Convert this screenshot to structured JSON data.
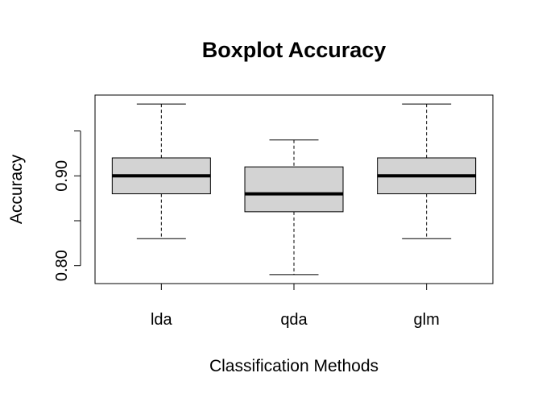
{
  "chart_data": {
    "type": "box",
    "title": "Boxplot Accuracy",
    "xlabel": "Classification Methods",
    "ylabel": "Accuracy",
    "categories": [
      "lda",
      "qda",
      "glm"
    ],
    "boxes": [
      {
        "name": "lda",
        "min": 0.83,
        "q1": 0.88,
        "median": 0.9,
        "q3": 0.92,
        "max": 0.98
      },
      {
        "name": "qda",
        "min": 0.79,
        "q1": 0.86,
        "median": 0.88,
        "q3": 0.91,
        "max": 0.94
      },
      {
        "name": "glm",
        "min": 0.83,
        "q1": 0.88,
        "median": 0.9,
        "q3": 0.92,
        "max": 0.98
      }
    ],
    "y_ticks": [
      0.8,
      0.85,
      0.9,
      0.95
    ],
    "y_tick_labels": [
      "0.80",
      "",
      "0.90",
      ""
    ],
    "ylim": [
      0.78,
      0.99
    ],
    "box_fill": "#d3d3d3",
    "grid": false
  }
}
